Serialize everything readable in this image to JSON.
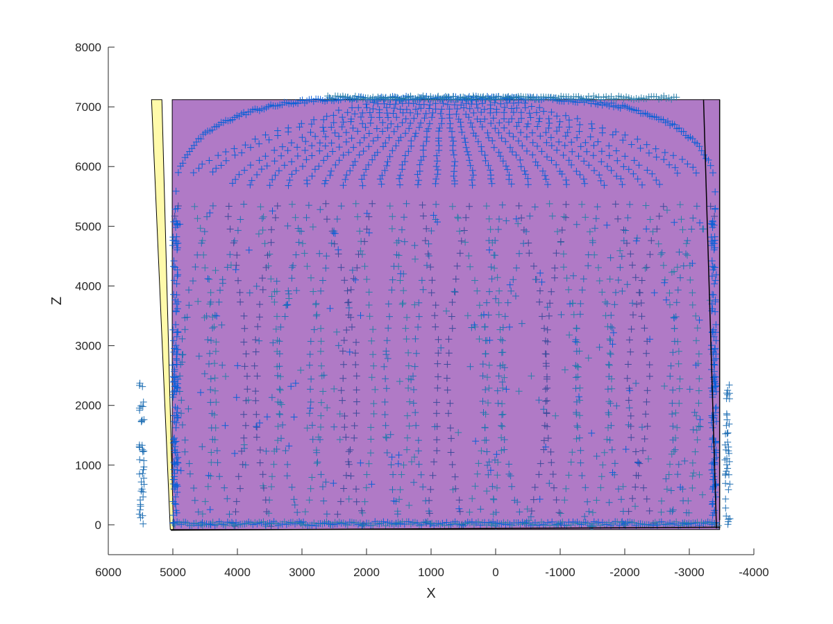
{
  "chart_data": {
    "type": "scatter",
    "title": "",
    "xlabel": "X",
    "ylabel": "Z",
    "xlim": [
      6000,
      -4000
    ],
    "ylim": [
      -500,
      8000
    ],
    "x_reversed": true,
    "grid": false,
    "legend": "none",
    "x_ticks": [
      6000,
      5000,
      4000,
      3000,
      2000,
      1000,
      0,
      -1000,
      -2000,
      -3000,
      -4000
    ],
    "x_tick_labels": [
      "6000",
      "5000",
      "4000",
      "3000",
      "2000",
      "1000",
      "0",
      "-1000",
      "-2000",
      "-3000",
      "-4000"
    ],
    "y_ticks": [
      0,
      1000,
      2000,
      3000,
      4000,
      5000,
      6000,
      7000,
      8000
    ],
    "y_tick_labels": [
      "0",
      "1000",
      "2000",
      "3000",
      "4000",
      "5000",
      "6000",
      "7000",
      "8000"
    ],
    "marker": "+",
    "marker_colors": [
      "#1f6fb4",
      "#0a5fd6",
      "#2a7fa8",
      "#3a4a9a"
    ],
    "regions": [
      {
        "name": "main-box",
        "shape": "polygon",
        "fill": "#b07ac6",
        "points": [
          [
            5010,
            7120
          ],
          [
            -3470,
            7120
          ],
          [
            -3470,
            -80
          ],
          [
            5010,
            -80
          ]
        ]
      },
      {
        "name": "left-wall",
        "shape": "polygon",
        "fill": "#fffaaa",
        "points": [
          [
            5330,
            7120
          ],
          [
            5170,
            7120
          ],
          [
            4990,
            -80
          ],
          [
            5040,
            -80
          ]
        ]
      }
    ],
    "outline_lines": [
      {
        "name": "right-wall-line",
        "points": [
          [
            -3220,
            7120
          ],
          [
            -3420,
            -60
          ]
        ]
      },
      {
        "name": "bottom-line",
        "points": [
          [
            5030,
            -90
          ],
          [
            -3480,
            -40
          ]
        ]
      },
      {
        "name": "right-edge-line",
        "points": [
          [
            -3470,
            7120
          ],
          [
            -3470,
            80
          ]
        ]
      }
    ],
    "point_groups": [
      {
        "name": "dome-arcs",
        "description_free": true,
        "x_range": [
          4950,
          -3400
        ],
        "z_base": 5700,
        "z_top": 7150,
        "count": 28
      },
      {
        "name": "wall-columns",
        "x_range": [
          4950,
          -3400
        ],
        "z_range": [
          0,
          5400
        ],
        "count": 34
      },
      {
        "name": "floor-band",
        "x_range": [
          5000,
          -3450
        ],
        "z": 0
      },
      {
        "name": "outside-left-column",
        "x": [
          5500,
          5440
        ],
        "z_range": [
          0,
          2400
        ]
      },
      {
        "name": "outside-right-column",
        "x": [
          -3560,
          -3620
        ],
        "z_range": [
          0,
          2350
        ]
      }
    ]
  }
}
